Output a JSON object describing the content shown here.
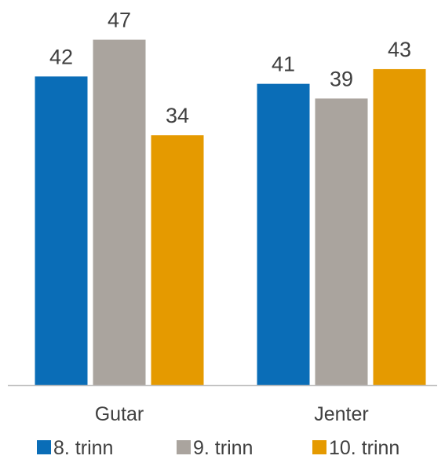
{
  "chart_data": {
    "type": "bar",
    "categories": [
      "Gutar",
      "Jenter"
    ],
    "series": [
      {
        "name": "8. trinn",
        "values": [
          42,
          41
        ],
        "color": "#0A6DB7"
      },
      {
        "name": "9. trinn",
        "values": [
          47,
          39
        ],
        "color": "#AAA49E"
      },
      {
        "name": "10. trinn",
        "values": [
          34,
          43
        ],
        "color": "#E59A00"
      }
    ],
    "title": "",
    "xlabel": "",
    "ylabel": "",
    "ylim": [
      0,
      50
    ],
    "grid": false,
    "data_labels": true,
    "legend_position": "bottom"
  }
}
